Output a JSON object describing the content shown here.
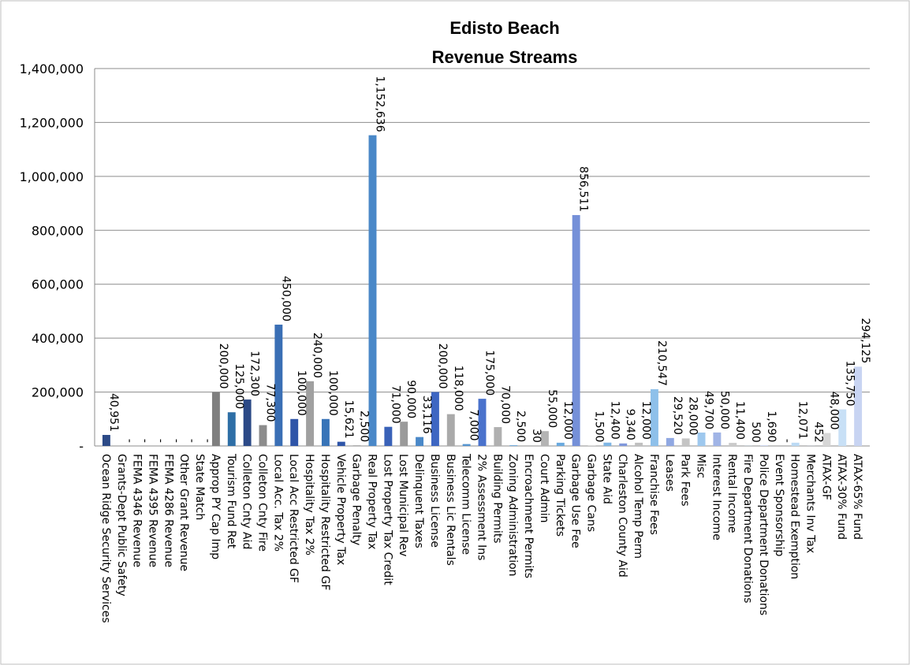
{
  "chart_data": {
    "type": "bar",
    "title": [
      "Edisto Beach",
      "Revenue Streams"
    ],
    "xlabel": "",
    "ylabel": "",
    "ylim": [
      0,
      1400000
    ],
    "yticks": [
      0,
      200000,
      400000,
      600000,
      800000,
      1000000,
      1200000,
      1400000
    ],
    "ytick_labels": [
      "-",
      "200,000",
      "400,000",
      "600,000",
      "800,000",
      "1,000,000",
      "1,200,000",
      "1,400,000"
    ],
    "grid": true,
    "legend": "none",
    "categories": [
      "Ocean Ridge Security  Services",
      "Grants-Dept Public Safety",
      "FEMA 4346 Revenue",
      "FEMA 4395 Revenue",
      "FEMA 4286 Revenue",
      "Other Grant Revenue",
      "State Match",
      "Approp PY Cap Imp",
      "Tourism Fund Ret",
      "Colleton Cnty Aid",
      "Colleton Cnty Fire",
      "Local Acc. Tax 2%",
      "Local Acc Restricted GF",
      "Hospitality Tax 2%",
      "Hospitality Restricted GF",
      "Vehicle Property Tax",
      "Garbage Penalty",
      "Real Property Tax",
      "Lost Property Tax Credit",
      "Lost Municipal Rev",
      "Delinquent Taxes",
      "Business License",
      "Business Lic Rentals",
      "Telecomm License",
      "2% Assessment Ins",
      "Building Permits",
      "Zoning Administration",
      "Encroachment Permits",
      "Court Admin",
      "Parking Tickets",
      "Garbage Use Fee",
      "Garbage Cans",
      "State Aid",
      "Charleston County Aid",
      "Alcohol Temp Perm",
      "Franchise Fees",
      "Leases",
      "Park Fees",
      "Misc",
      "Interest Income",
      "Rental Income",
      "Fire Department Donations",
      "Police Department Donations",
      "Event Sponsorship",
      "Homestead Exemption",
      "Merchants Inv Tax",
      "ATAX-GF",
      "ATAX-30% Fund",
      "ATAX-65% Fund"
    ],
    "values": [
      40951,
      0,
      0,
      0,
      0,
      0,
      0,
      200000,
      125000,
      172300,
      77300,
      450000,
      100000,
      240000,
      100000,
      15621,
      2500,
      1152636,
      71000,
      90000,
      33116,
      200000,
      118000,
      7000,
      175000,
      70000,
      2500,
      30,
      55000,
      12000,
      856511,
      1500,
      12400,
      9340,
      12000,
      210547,
      29520,
      28000,
      49700,
      50000,
      11400,
      500,
      1690,
      0,
      12071,
      452,
      48000,
      135750,
      294125
    ],
    "data_labels": [
      "40,951",
      "-",
      "-",
      "-",
      "-",
      "-",
      "-",
      "200,000",
      "125,000",
      "172,300",
      "77,300",
      "450,000",
      "100,000",
      "240,000",
      "100,000",
      "15,621",
      "2,500",
      "1,152,636",
      "71,000",
      "90,000",
      "33,116",
      "200,000",
      "118,000",
      "7,000",
      "175,000",
      "70,000",
      "2,500",
      "30",
      "55,000",
      "12,000",
      "856,511",
      "1,500",
      "12,400",
      "9,340",
      "12,000",
      "210,547",
      "29,520",
      "28,000",
      "49,700",
      "50,000",
      "11,400",
      "500",
      "1,690",
      "-",
      "12,071",
      "452",
      "48,000",
      "135,750",
      "294,125"
    ],
    "colors": [
      "#2c4a87",
      "#2c4a87",
      "#2c4a87",
      "#2c4a87",
      "#2c4a87",
      "#2c4a87",
      "#2c4a87",
      "#7f7f7f",
      "#2e6ea6",
      "#2c4a87",
      "#8c8c8c",
      "#3a6fb5",
      "#2f55a8",
      "#a0a0a0",
      "#3874b8",
      "#2f55a8",
      "#a6a6a6",
      "#4a88c8",
      "#3a62b8",
      "#9a9a9a",
      "#4a88c8",
      "#3d66c2",
      "#aaaaaa",
      "#5595d0",
      "#4a72cc",
      "#b0b0b0",
      "#60a0d8",
      "#5a80d4",
      "#b4b4b4",
      "#6aaadf",
      "#7590d8",
      "#bcbcbc",
      "#7fb6e4",
      "#8098dc",
      "#c0c0c0",
      "#8ec0ea",
      "#90a8e2",
      "#c4c4c4",
      "#9ec8ee",
      "#a0b4e6",
      "#cacaca",
      "#aed2f2",
      "#b0c0ea",
      "#d0d0d0",
      "#bcdaf4",
      "#bcc9ee",
      "#d6d6d6",
      "#c8e0f6",
      "#c8d4f2"
    ]
  }
}
